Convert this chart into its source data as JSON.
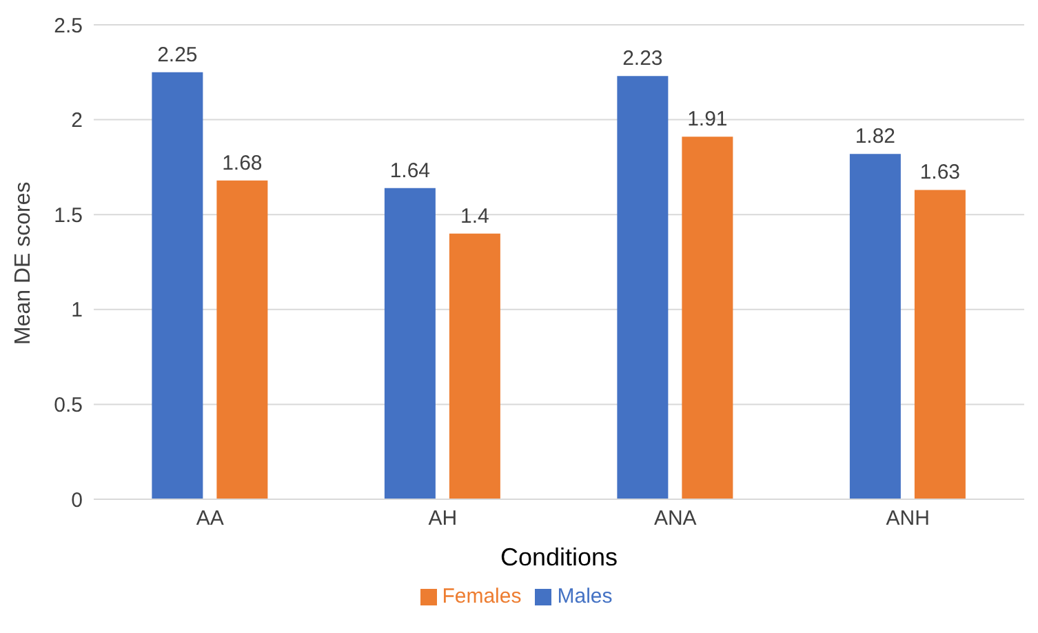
{
  "chart_data": {
    "type": "bar",
    "xlabel": "Conditions",
    "ylabel": "Mean DE scores",
    "categories": [
      "AA",
      "AH",
      "ANA",
      "ANH"
    ],
    "series": [
      {
        "name": "Males",
        "color": "#4472c4",
        "values": [
          2.25,
          1.64,
          2.23,
          1.82
        ]
      },
      {
        "name": "Females",
        "color": "#ed7d31",
        "values": [
          1.68,
          1.4,
          1.91,
          1.63
        ]
      }
    ],
    "ylim": [
      0,
      2.5
    ],
    "yticks": [
      0,
      0.5,
      1,
      1.5,
      2,
      2.5
    ],
    "grid": "y",
    "legend": "bottom",
    "data_labels": true
  }
}
